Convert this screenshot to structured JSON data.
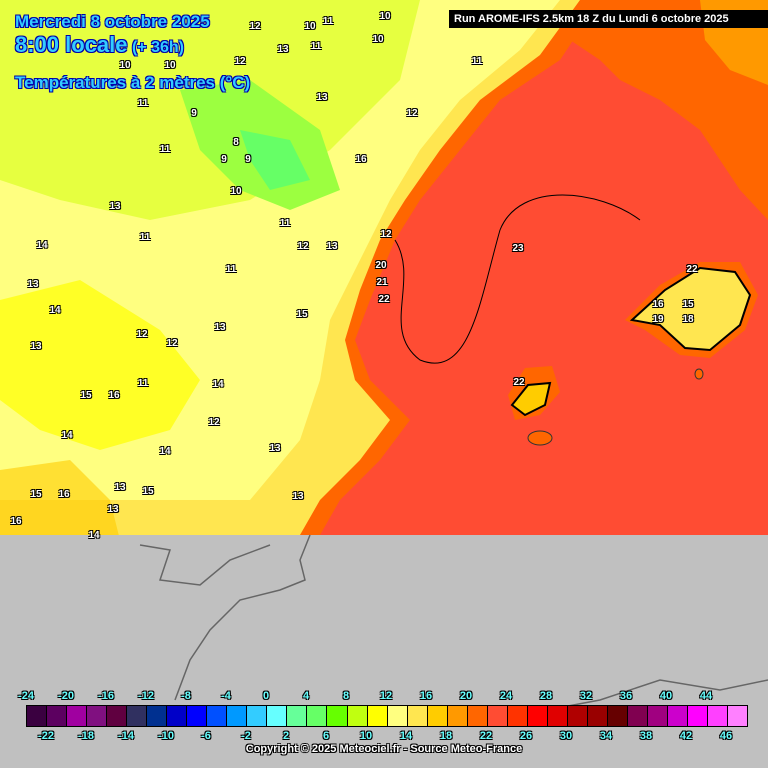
{
  "header": {
    "date": "Mercredi 8 octobre 2025",
    "time": "8:00 locale",
    "lead": "(+ 36h)",
    "field": "Températures à 2 mètres (°C)",
    "run": "Run AROME-IFS 2.5km 18 Z du Lundi 6 octobre 2025"
  },
  "map_labels": [
    "12",
    "10",
    "11",
    "10",
    "10",
    "12",
    "13",
    "11",
    "10",
    "10",
    "11",
    "13",
    "12",
    "11",
    "9",
    "11",
    "8",
    "9",
    "9",
    "10",
    "16",
    "13",
    "11",
    "12",
    "13",
    "14",
    "11",
    "12",
    "11",
    "20",
    "21",
    "22",
    "23",
    "22",
    "13",
    "14",
    "15",
    "12",
    "12",
    "13",
    "13",
    "11",
    "14",
    "15",
    "16",
    "14",
    "12",
    "14",
    "13",
    "15",
    "16",
    "13",
    "15",
    "13",
    "13",
    "16",
    "14",
    "22",
    "16",
    "15",
    "19",
    "18"
  ],
  "legend": {
    "unit": "°C",
    "colors": [
      "#3a0040",
      "#5c0060",
      "#a000a0",
      "#801080",
      "#600040",
      "#303060",
      "#003090",
      "#0000c8",
      "#0000ff",
      "#0050ff",
      "#0099ff",
      "#33ccff",
      "#66ffff",
      "#66ff99",
      "#66ff66",
      "#66ff00",
      "#c0ff10",
      "#ffff00",
      "#ffff80",
      "#ffe650",
      "#ffcc00",
      "#ff9900",
      "#ff6600",
      "#ff4c33",
      "#ff3300",
      "#ff0000",
      "#e00000",
      "#b00000",
      "#990000",
      "#660000",
      "#800050",
      "#a00080",
      "#cc00cc",
      "#ff00ff",
      "#ff40ff",
      "#ff80ff"
    ],
    "top_ticks": [
      "-24",
      "-20",
      "-16",
      "-12",
      "-8",
      "-4",
      "0",
      "4",
      "8",
      "12",
      "16",
      "20",
      "24",
      "28",
      "32",
      "36",
      "40",
      "44"
    ],
    "bottom_ticks": [
      "-22",
      "-18",
      "-14",
      "-10",
      "-6",
      "-2",
      "2",
      "6",
      "10",
      "14",
      "18",
      "22",
      "26",
      "30",
      "34",
      "38",
      "42",
      "46"
    ]
  },
  "copyright": "Copyright © 2025 Meteociel.fr - Source Meteo-France",
  "colors": {
    "sea": "#ff4c33",
    "land": "#ffff80",
    "no_data": "#c0c0c0",
    "title": "#33ccff"
  }
}
